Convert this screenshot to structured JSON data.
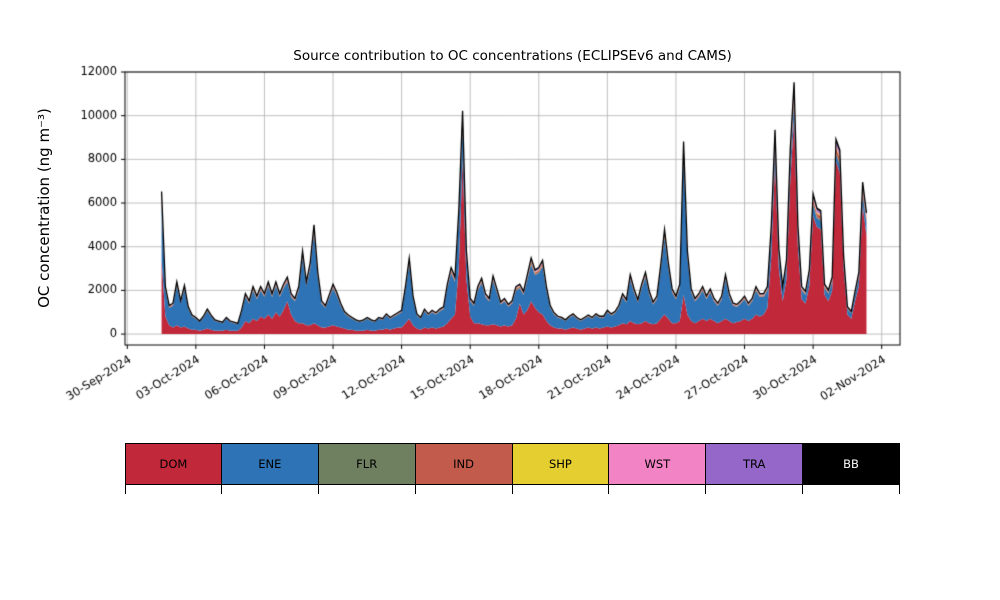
{
  "chart_data": {
    "type": "area",
    "stacked": true,
    "title": "Source contribution to OC concentrations (ECLIPSEv6 and CAMS)",
    "xlabel": "",
    "ylabel": "OC concentration (ng m⁻³)",
    "ylim": [
      -500,
      12000
    ],
    "xlim_days": [
      -0.1,
      33.8
    ],
    "y_ticks": [
      0,
      2000,
      4000,
      6000,
      8000,
      10000,
      12000
    ],
    "x_ticks_days": [
      0,
      3,
      6,
      9,
      12,
      15,
      18,
      21,
      24,
      27,
      30,
      33
    ],
    "x_ticklabels": [
      "30-Sep-2024",
      "03-Oct-2024",
      "06-Oct-2024",
      "09-Oct-2024",
      "12-Oct-2024",
      "15-Oct-2024",
      "18-Oct-2024",
      "21-Oct-2024",
      "24-Oct-2024",
      "27-Oct-2024",
      "30-Oct-2024",
      "02-Nov-2024"
    ],
    "grid": true,
    "grid_color": "#b0b0b0",
    "spine_color": "#000000",
    "total_line_color": "#000000",
    "legend_position": "bottom",
    "x_start_day": 1.5,
    "x_step_days": 0.1666667,
    "series": [
      {
        "name": "DOM",
        "color": "#c1283a",
        "values": [
          3400,
          800,
          400,
          300,
          400,
          300,
          350,
          250,
          200,
          200,
          150,
          200,
          250,
          200,
          150,
          150,
          150,
          200,
          150,
          150,
          150,
          300,
          600,
          500,
          700,
          600,
          800,
          700,
          900,
          700,
          1000,
          800,
          1100,
          1500,
          900,
          600,
          500,
          500,
          400,
          400,
          500,
          400,
          300,
          300,
          350,
          400,
          350,
          300,
          250,
          200,
          200,
          150,
          150,
          150,
          200,
          150,
          150,
          200,
          200,
          250,
          200,
          250,
          300,
          300,
          500,
          700,
          400,
          250,
          200,
          300,
          250,
          300,
          250,
          300,
          350,
          500,
          700,
          900,
          3000,
          8000,
          2500,
          800,
          500,
          500,
          450,
          400,
          400,
          450,
          400,
          350,
          400,
          350,
          400,
          700,
          1400,
          900,
          1100,
          1500,
          1200,
          1000,
          900,
          600,
          400,
          300,
          250,
          250,
          200,
          250,
          300,
          250,
          200,
          250,
          300,
          250,
          300,
          250,
          300,
          350,
          300,
          350,
          400,
          500,
          450,
          600,
          500,
          450,
          500,
          600,
          500,
          450,
          500,
          700,
          900,
          700,
          500,
          500,
          600,
          1800,
          900,
          600,
          500,
          600,
          700,
          600,
          700,
          600,
          500,
          600,
          700,
          600,
          500,
          550,
          600,
          700,
          600,
          700,
          900,
          800,
          900,
          1200,
          3500,
          7900,
          3000,
          1500,
          2500,
          7000,
          9900,
          4000,
          1600,
          1400,
          2200,
          5400,
          4900,
          4800,
          1800,
          1500,
          2000,
          7900,
          7400,
          3000,
          900,
          700,
          1500,
          2200,
          5900,
          4500
        ]
      },
      {
        "name": "ENE",
        "color": "#2e73b5",
        "values": [
          2600,
          1200,
          800,
          1000,
          1800,
          1100,
          1700,
          900,
          600,
          500,
          400,
          550,
          800,
          600,
          450,
          400,
          350,
          500,
          400,
          350,
          300,
          700,
          1100,
          900,
          1300,
          1000,
          1200,
          1000,
          1300,
          1000,
          1200,
          900,
          1000,
          900,
          800,
          900,
          1500,
          3000,
          1800,
          2600,
          4100,
          2200,
          1100,
          900,
          1300,
          1700,
          1400,
          1000,
          700,
          600,
          500,
          450,
          400,
          450,
          500,
          450,
          400,
          500,
          450,
          600,
          500,
          550,
          600,
          700,
          1500,
          2500,
          1200,
          600,
          500,
          750,
          600,
          700,
          650,
          750,
          800,
          1600,
          2100,
          1500,
          2200,
          1400,
          1000,
          700,
          800,
          1500,
          1900,
          1300,
          1100,
          2000,
          1500,
          1000,
          1100,
          900,
          1000,
          1300,
          700,
          900,
          1400,
          1700,
          1500,
          1800,
          2200,
          1400,
          800,
          600,
          500,
          450,
          400,
          500,
          550,
          450,
          400,
          450,
          500,
          450,
          550,
          500,
          450,
          650,
          550,
          600,
          800,
          1200,
          1000,
          1900,
          1400,
          1000,
          1600,
          2000,
          1300,
          900,
          1100,
          2200,
          3500,
          2300,
          1400,
          1100,
          1500,
          6300,
          2600,
          1300,
          1000,
          1100,
          1300,
          1000,
          1200,
          900,
          800,
          1000,
          1800,
          1100,
          800,
          700,
          800,
          900,
          700,
          800,
          1100,
          900,
          800,
          800,
          1000,
          700,
          600,
          500,
          600,
          800,
          700,
          600,
          400,
          400,
          500,
          500,
          400,
          400,
          300,
          350,
          400,
          300,
          350,
          300,
          250,
          250,
          300,
          400,
          500,
          600
        ]
      },
      {
        "name": "FLR",
        "color": "#6f8061",
        "fraction_of_major_sum": 0.01
      },
      {
        "name": "IND",
        "color": "#c35b4c",
        "fraction_of_major_sum": 0.03
      },
      {
        "name": "SHP",
        "color": "#e5ce30",
        "fraction_of_major_sum": 0.008
      },
      {
        "name": "WST",
        "color": "#f283c5",
        "fraction_of_major_sum": 0.012
      },
      {
        "name": "TRA",
        "color": "#9467c9",
        "fraction_of_major_sum": 0.016
      },
      {
        "name": "BB",
        "color": "#000000",
        "fraction_of_major_sum": 0.012
      }
    ],
    "legend": [
      {
        "label": "DOM",
        "color": "#c1283a",
        "text_color": "#000000"
      },
      {
        "label": "ENE",
        "color": "#2e73b5",
        "text_color": "#000000"
      },
      {
        "label": "FLR",
        "color": "#6f8061",
        "text_color": "#000000"
      },
      {
        "label": "IND",
        "color": "#c35b4c",
        "text_color": "#000000"
      },
      {
        "label": "SHP",
        "color": "#e5ce30",
        "text_color": "#000000"
      },
      {
        "label": "WST",
        "color": "#f283c5",
        "text_color": "#000000"
      },
      {
        "label": "TRA",
        "color": "#9467c9",
        "text_color": "#000000"
      },
      {
        "label": "BB",
        "color": "#000000",
        "text_color": "#ffffff"
      }
    ]
  }
}
